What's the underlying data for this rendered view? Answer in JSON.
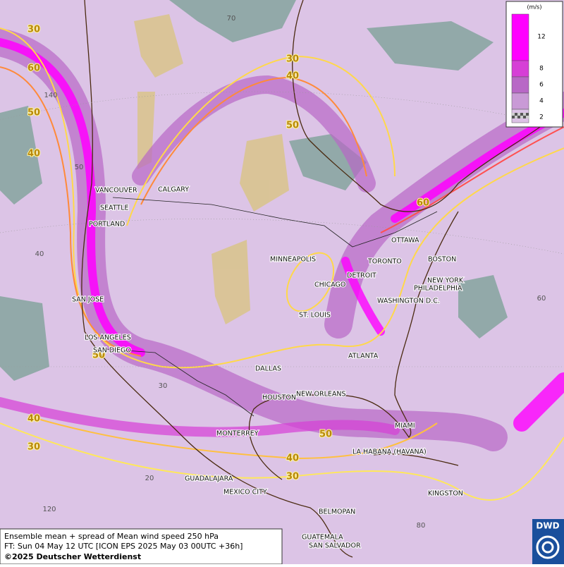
{
  "map": {
    "contour_labels": [
      30,
      60,
      50,
      40,
      30,
      40,
      50,
      60,
      50,
      40,
      30,
      50,
      40,
      30
    ],
    "grid_labels": [
      70,
      140,
      50,
      40,
      30,
      20,
      120,
      80,
      60
    ],
    "cities": [
      "VANCOUVER",
      "CALGARY",
      "SEATTLE",
      "PORTLAND",
      "MINNEAPOLIS",
      "TORONTO",
      "OTTAWA",
      "BOSTON",
      "DETROIT",
      "CHICAGO",
      "NEW YORK",
      "PHILADELPHIA",
      "WASHINGTON D.C.",
      "SAN JOSE",
      "ST. LOUIS",
      "LOS ANGELES",
      "SAN DIEGO",
      "ATLANTA",
      "DALLAS",
      "HOUSTON",
      "NEW ORLEANS",
      "MIAMI",
      "MONTERREY",
      "LA HABANA (HAVANA)",
      "GUADALAJARA",
      "MEXICO CITY",
      "KINGSTON",
      "BELMOPAN",
      "GUATEMALA",
      "SAN SALVADOR"
    ]
  },
  "legend": {
    "unit": "(m/s)",
    "ticks": [
      12,
      8,
      6,
      4,
      2
    ],
    "colors": [
      "#ff00ff",
      "#d63fd6",
      "#b868c6",
      "#c99ad6",
      "#dcc2e6"
    ]
  },
  "footer": {
    "line1": "Ensemble mean + spread of Mean wind speed 250 hPa",
    "line2": "FT: Sun 04 May 12 UTC [ICON EPS 2025 May 03 00UTC +36h]",
    "copyright": "©2025 Deutscher Wetterdienst"
  },
  "logo": "DWD"
}
